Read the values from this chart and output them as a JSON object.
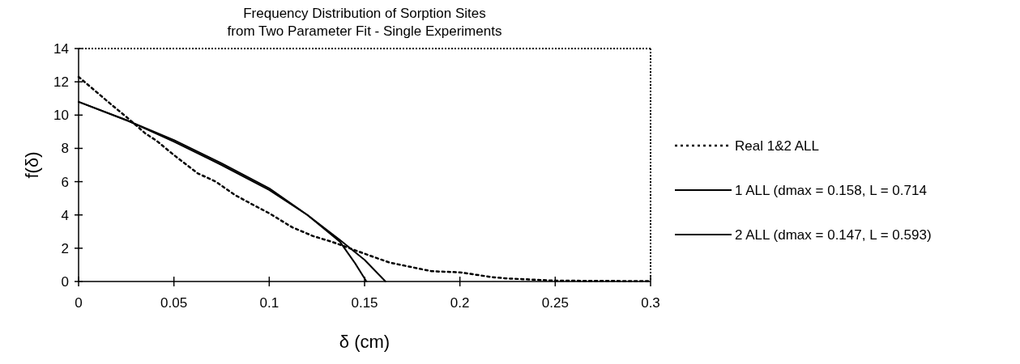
{
  "chart_data": {
    "type": "line",
    "title": "Frequency Distribution of Sorption Sites\nfrom Two Parameter Fit - Single Experiments",
    "xlabel": "δ (cm)",
    "ylabel": "f(δ)",
    "xlim": [
      0,
      0.3
    ],
    "ylim": [
      0,
      14
    ],
    "xticks": [
      0,
      0.05,
      0.1,
      0.15,
      0.2,
      0.25,
      0.3
    ],
    "yticks": [
      0,
      2,
      4,
      6,
      8,
      10,
      12,
      14
    ],
    "legend": "right",
    "grid": false,
    "marker": "none",
    "series": [
      {
        "name": "Real 1&2 ALL",
        "color": "#000000",
        "line_style": "dotted",
        "x": [
          0,
          0.017,
          0.026,
          0.035,
          0.041,
          0.05,
          0.0625,
          0.072,
          0.082,
          0.09,
          0.1,
          0.112,
          0.123,
          0.133,
          0.15,
          0.163,
          0.185,
          0.2,
          0.217,
          0.225,
          0.25,
          0.3
        ],
        "values": [
          12.3,
          10.65,
          9.8,
          8.9,
          8.45,
          7.6,
          6.5,
          6.0,
          5.2,
          4.7,
          4.1,
          3.26,
          2.73,
          2.38,
          1.67,
          1.14,
          0.62,
          0.55,
          0.26,
          0.18,
          0.05,
          0.02
        ]
      },
      {
        "name": "1 ALL (dmax = 0.158, L = 0.714",
        "color": "#000000",
        "line_style": "solid",
        "x": [
          0,
          0.025,
          0.05,
          0.075,
          0.1,
          0.12,
          0.137,
          0.15,
          0.161
        ],
        "values": [
          10.8,
          9.7,
          8.4,
          7.0,
          5.5,
          4.0,
          2.5,
          1.3,
          0
        ]
      },
      {
        "name": "2 ALL (dmax = 0.147, L = 0.593)",
        "color": "#000000",
        "line_style": "solid",
        "x": [
          0,
          0.025,
          0.05,
          0.075,
          0.1,
          0.12,
          0.137,
          0.145,
          0.151
        ],
        "values": [
          10.8,
          9.7,
          8.5,
          7.1,
          5.6,
          4.0,
          2.4,
          1.1,
          0
        ]
      }
    ]
  }
}
